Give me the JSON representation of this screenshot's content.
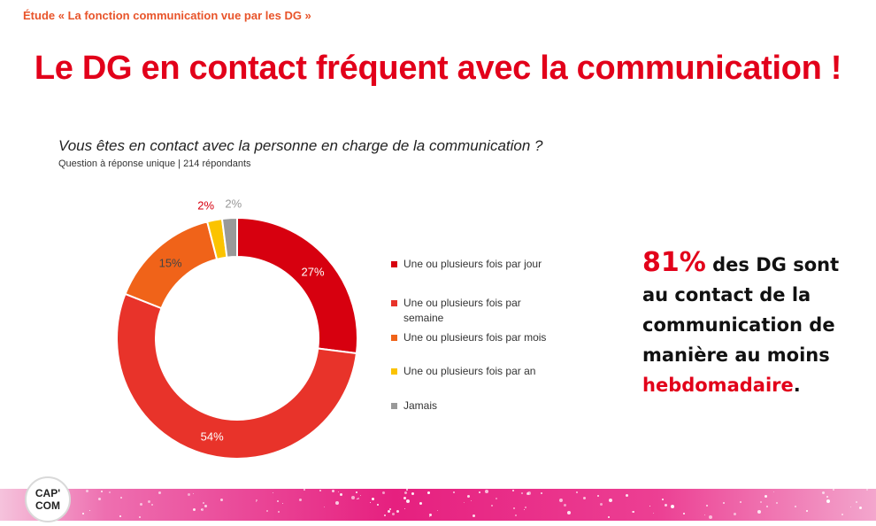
{
  "header": {
    "study": "Étude « La fonction communication vue par les DG »",
    "title": "Le DG en contact fréquent avec la communication !"
  },
  "question": {
    "text": "Vous êtes en contact avec la personne en charge de la communication ?",
    "meta": "Question à réponse unique | 214 répondants"
  },
  "chart_data": {
    "type": "pie",
    "donut": true,
    "title": "",
    "legend_position": "right",
    "categories": [
      "Une ou plusieurs fois par jour",
      "Une ou plusieurs fois par semaine",
      "Une ou plusieurs fois par mois",
      "Une ou plusieurs fois par an",
      "Jamais"
    ],
    "values": [
      27,
      54,
      15,
      2,
      2
    ],
    "labels": [
      "27%",
      "54%",
      "15%",
      "2%",
      "2%"
    ],
    "colors": [
      "#d7000f",
      "#e8332a",
      "#f06319",
      "#fbc300",
      "#999999"
    ],
    "label_colors": [
      "#ffffff",
      "#ffffff",
      "#444444",
      "#d7000f",
      "#999999"
    ]
  },
  "legend": {
    "items": [
      {
        "line1": "Une ou plusieurs fois par jour",
        "line2": ""
      },
      {
        "line1": "Une ou plusieurs fois par",
        "line2": "semaine"
      },
      {
        "line1": "Une ou plusieurs fois par mois",
        "line2": ""
      },
      {
        "line1": "Une ou plusieurs fois par an",
        "line2": ""
      },
      {
        "line1": "Jamais",
        "line2": ""
      }
    ]
  },
  "callout": {
    "pct": "81%",
    "part1": " des DG sont au contact de la communication de manière au moins ",
    "emphasis": "hebdomadaire",
    "end": "."
  },
  "logo": {
    "line1": "CAP'",
    "line2": "COM"
  },
  "colors": {
    "accent_red": "#e2001a",
    "study_orange": "#e8542a",
    "footer_pink": "#e6207f"
  }
}
